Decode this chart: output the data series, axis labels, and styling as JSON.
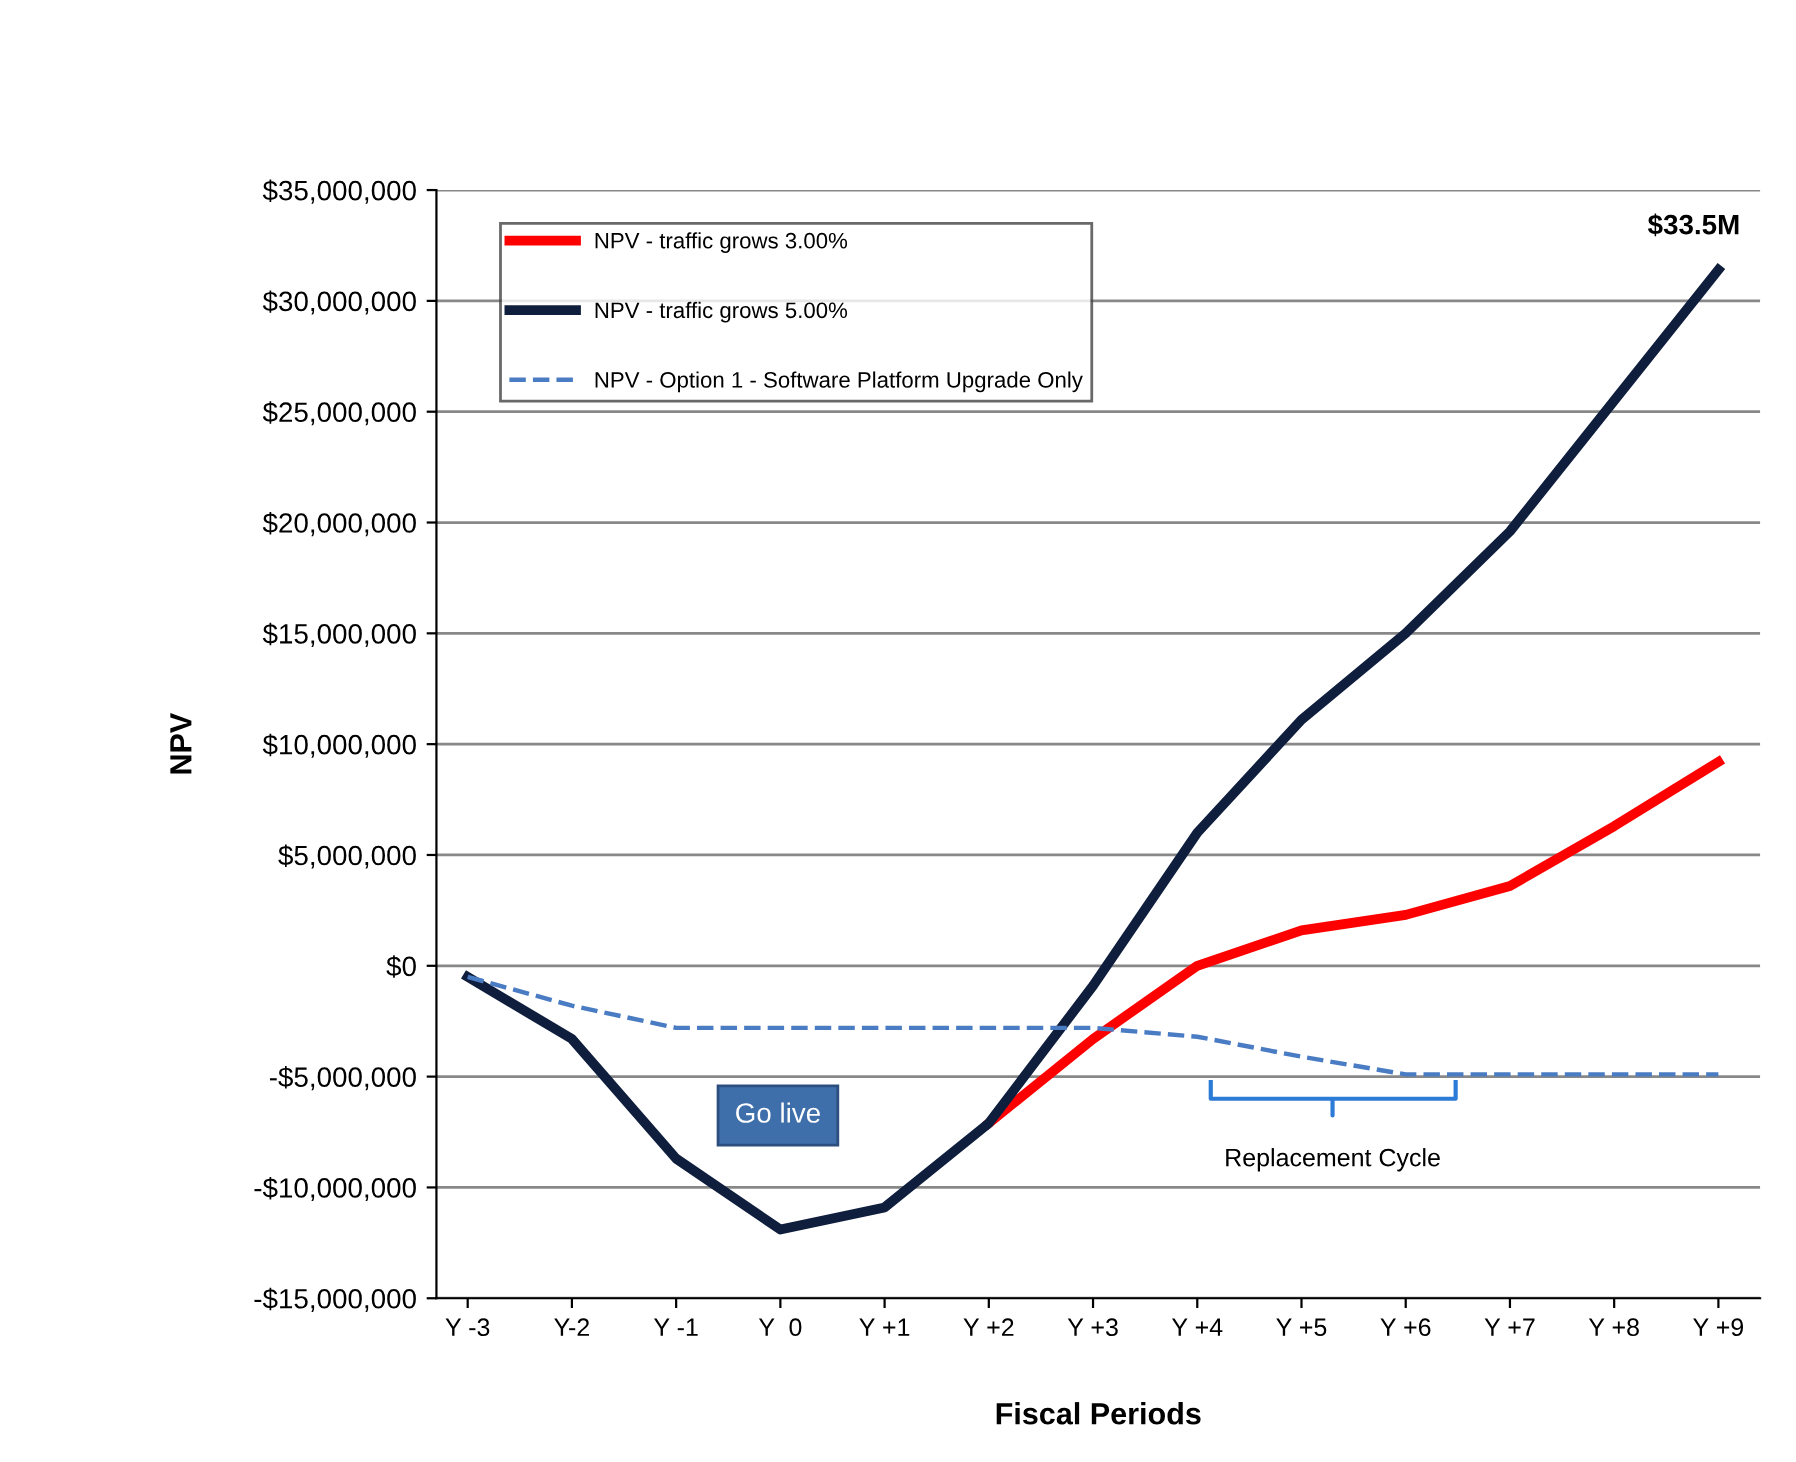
{
  "chart_data": {
    "type": "line",
    "xlabel": "Fiscal Periods",
    "ylabel": "NPV",
    "categories": [
      "Y -3",
      "Y-2",
      "Y -1",
      "Y  0",
      "Y +1",
      "Y +2",
      "Y +3",
      "Y +4",
      "Y +5",
      "Y +6",
      "Y +7",
      "Y +8",
      "Y +9"
    ],
    "series": [
      {
        "name": "NPV - traffic grows 3.00%",
        "color": "#ff0000",
        "line_style": "solid",
        "values": [
          null,
          null,
          null,
          null,
          null,
          -7100000.0,
          -3300000.0,
          0,
          1600000.0,
          2300000.0,
          3600000.0,
          6300000.0,
          9200000.0
        ]
      },
      {
        "name": "NPV - traffic grows 5.00%",
        "color": "#0f1e3c",
        "line_style": "solid",
        "values": [
          -500000.0,
          -3300000.0,
          -8700000.0,
          -11900000.0,
          -10900000.0,
          -7100000.0,
          -900000.0,
          6000000.0,
          11100000.0,
          15000000.0,
          19600000.0,
          25500000.0,
          31400000.0
        ]
      },
      {
        "name": "NPV - Option 1 - Software Platform Upgrade Only",
        "color": "#4a7cc4",
        "line_style": "dashed",
        "values": [
          -500000.0,
          -1800000.0,
          -2800000.0,
          -2800000.0,
          -2800000.0,
          -2800000.0,
          -2800000.0,
          -3200000.0,
          -4100000.0,
          -4900000.0,
          -4900000.0,
          -4900000.0,
          -4900000.0
        ]
      }
    ],
    "ylim": [
      -15000000,
      35000000
    ],
    "yticks": [
      {
        "value": -15000000,
        "label": "-$15,000,000"
      },
      {
        "value": -10000000,
        "label": "-$10,000,000"
      },
      {
        "value": -5000000,
        "label": "-$5,000,000"
      },
      {
        "value": 0,
        "label": "$0"
      },
      {
        "value": 5000000,
        "label": "$5,000,000"
      },
      {
        "value": 10000000,
        "label": "$10,000,000"
      },
      {
        "value": 15000000,
        "label": "$15,000,000"
      },
      {
        "value": 20000000,
        "label": "$20,000,000"
      },
      {
        "value": 25000000,
        "label": "$25,000,000"
      },
      {
        "value": 30000000,
        "label": "$30,000,000"
      },
      {
        "value": 35000000,
        "label": "$35,000,000"
      }
    ],
    "grid": "y",
    "legend": "top left",
    "marker": "none",
    "annotations": [
      "$33.5M",
      "Go live",
      "Replacement Cycle"
    ]
  }
}
